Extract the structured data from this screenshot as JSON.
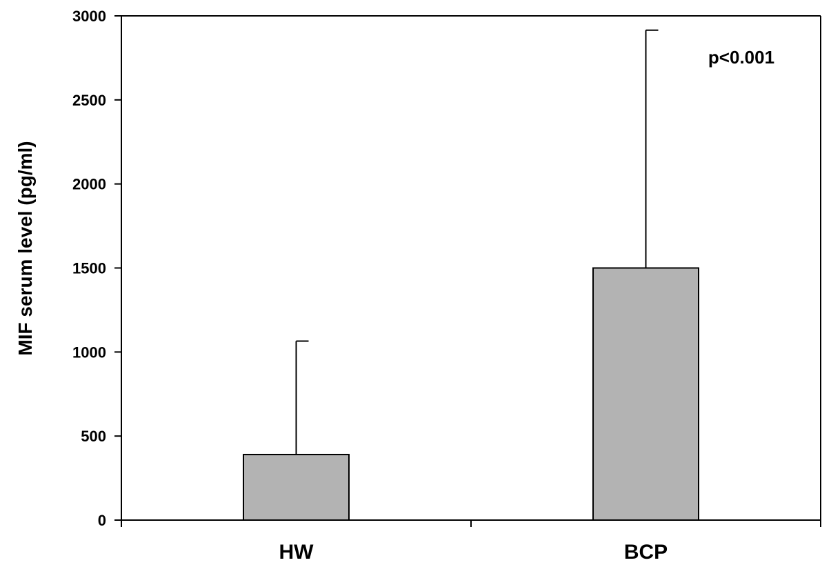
{
  "chart_data": {
    "type": "bar",
    "title": "",
    "xlabel": "",
    "ylabel": "MIF serum level (pg/ml)",
    "categories": [
      "HW",
      "BCP"
    ],
    "values": [
      390,
      1500
    ],
    "error_upper": [
      1065,
      2915
    ],
    "ylim": [
      0,
      3000
    ],
    "yticks": [
      0,
      500,
      1000,
      1500,
      2000,
      2500,
      3000
    ],
    "ytick_labels": [
      "0",
      "500",
      "1000",
      "1500",
      "2000",
      "2500",
      "3000"
    ],
    "annotation": "p<0.001",
    "grid": false,
    "colors": {
      "bar": "#b3b3b3",
      "stroke": "#000000"
    }
  }
}
